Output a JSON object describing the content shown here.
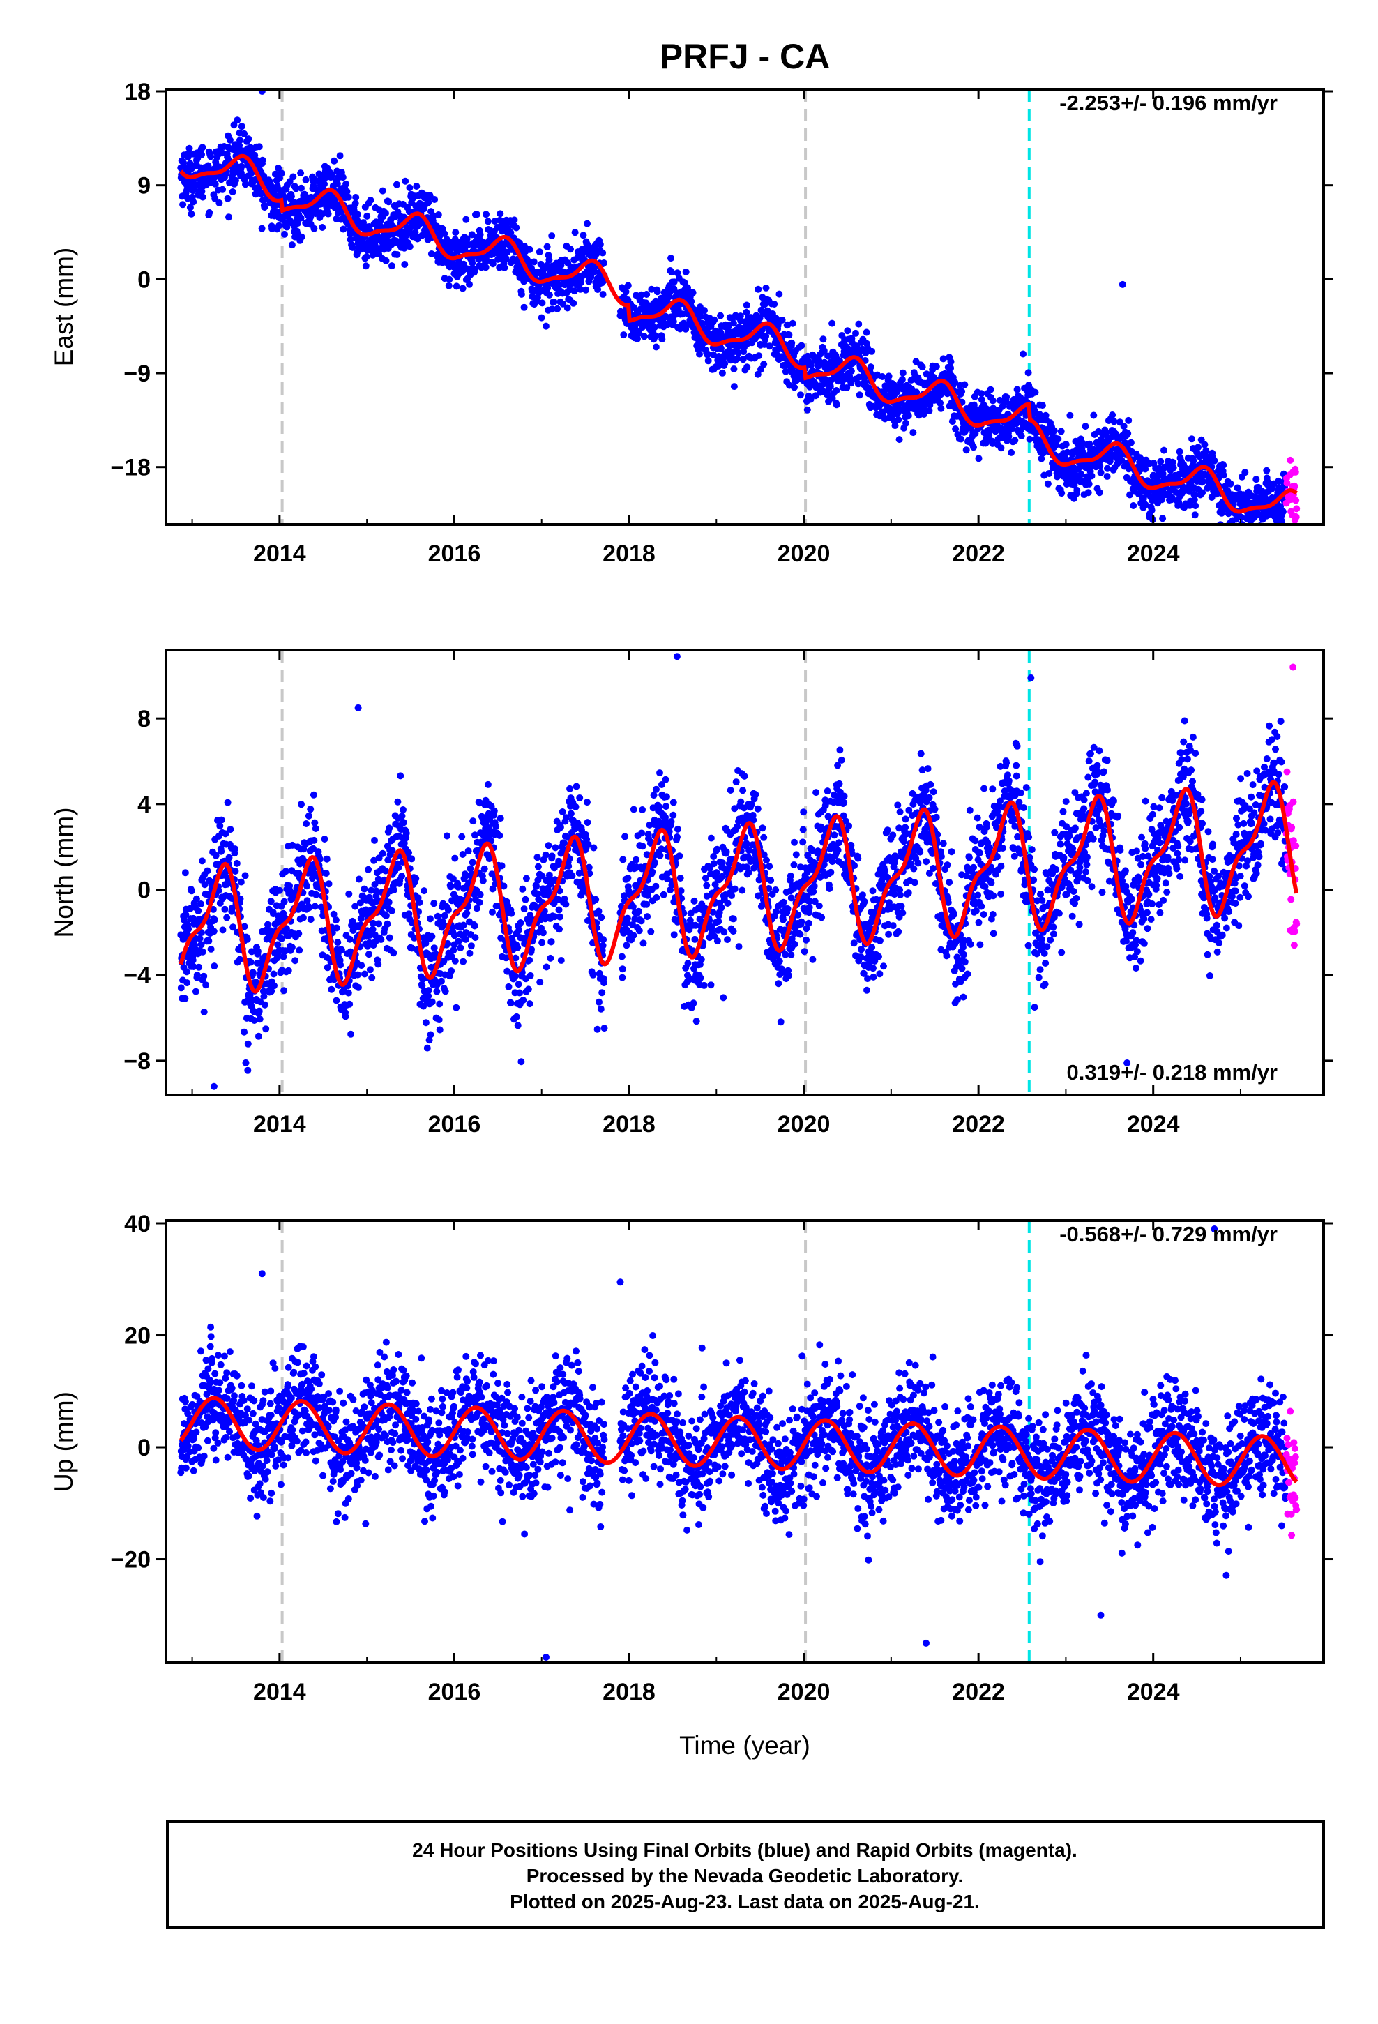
{
  "chart_data": {
    "type": "scatter",
    "title": "PRFJ - CA",
    "xlabel": "Time (year)",
    "x_ticks": [
      2014,
      2016,
      2018,
      2020,
      2022,
      2024
    ],
    "x_range": [
      2012.7,
      2025.95
    ],
    "event_lines": [
      {
        "x": 2014.03,
        "color": "#c8c8c8",
        "kind": "gray-dashed"
      },
      {
        "x": 2020.02,
        "color": "#c8c8c8",
        "kind": "gray-dashed"
      },
      {
        "x": 2022.58,
        "color": "#00e5e5",
        "kind": "cyan-dashed"
      }
    ],
    "colors": {
      "final": "#0000ff",
      "rapid": "#ff00ff",
      "model": "#ff0000",
      "frame": "#000000"
    },
    "rapid_start": 2025.52,
    "data_end": 2025.64,
    "panels": [
      {
        "key": "east",
        "ylabel": "East (mm)",
        "y_ticks": [
          18,
          9,
          0,
          -9,
          -18
        ],
        "y_range": [
          -23.5,
          18.2
        ],
        "rate_label": "-2.253+/- 0.196 mm/yr",
        "rate_position": "top-right",
        "trend": {
          "start_value": 11.5,
          "slope": -2.253
        },
        "seasonal": {
          "annual_amp": 1.5,
          "annual_phase": 0.3,
          "semi_amp": 0.5,
          "semi_phase": 0.5
        },
        "noise_sd": 1.4,
        "steps": [
          {
            "x": 2014.03,
            "size": -1.0
          },
          {
            "x": 2018.0,
            "size": -1.5
          },
          {
            "x": 2020.02,
            "size": -1.0
          },
          {
            "x": 2022.58,
            "size": -1.5
          }
        ],
        "outliers": [
          {
            "x": 2013.8,
            "y": 18.0
          },
          {
            "x": 2017.05,
            "y": -4.5
          },
          {
            "x": 2023.65,
            "y": -0.5
          },
          {
            "x": 2025.62,
            "y": -22.7
          }
        ]
      },
      {
        "key": "north",
        "ylabel": "North (mm)",
        "y_ticks": [
          8,
          4,
          0,
          -4,
          -8
        ],
        "y_range": [
          -9.6,
          11.2
        ],
        "rate_label": "0.319+/- 0.218 mm/yr",
        "rate_position": "bottom-right",
        "trend": {
          "start_value": -2.0,
          "slope": 0.319
        },
        "seasonal": {
          "annual_amp": 2.5,
          "annual_phase": 0.05,
          "semi_amp": 1.0,
          "semi_phase": 0.3
        },
        "noise_sd": 1.4,
        "steps": [],
        "outliers": [
          {
            "x": 2013.25,
            "y": -9.2
          },
          {
            "x": 2014.9,
            "y": 8.5
          },
          {
            "x": 2018.55,
            "y": 10.9
          },
          {
            "x": 2022.6,
            "y": 9.9
          },
          {
            "x": 2025.6,
            "y": 10.4
          },
          {
            "x": 2023.7,
            "y": -8.1
          }
        ]
      },
      {
        "key": "up",
        "ylabel": "Up (mm)",
        "y_ticks": [
          40,
          20,
          0,
          -20
        ],
        "y_range": [
          -38.5,
          40.5
        ],
        "rate_label": "-0.568+/- 0.729 mm/yr",
        "rate_position": "top-right",
        "trend": {
          "start_value": 4.5,
          "slope": -0.568
        },
        "seasonal": {
          "annual_amp": 4.5,
          "annual_phase": 0.0,
          "semi_amp": 0.0,
          "semi_phase": 0.0
        },
        "noise_sd": 5.0,
        "steps": [],
        "outliers": [
          {
            "x": 2013.8,
            "y": 31.0
          },
          {
            "x": 2017.05,
            "y": -37.5
          },
          {
            "x": 2017.9,
            "y": 29.5
          },
          {
            "x": 2021.4,
            "y": -35.0
          },
          {
            "x": 2024.7,
            "y": 39.0
          },
          {
            "x": 2023.4,
            "y": -30.0
          }
        ]
      }
    ]
  },
  "footer": {
    "line1": "24 Hour Positions Using Final Orbits (blue) and Rapid Orbits (magenta).",
    "line2": "Processed by the Nevada Geodetic Laboratory.",
    "line3": "Plotted on 2025-Aug-23. Last data on 2025-Aug-21."
  }
}
